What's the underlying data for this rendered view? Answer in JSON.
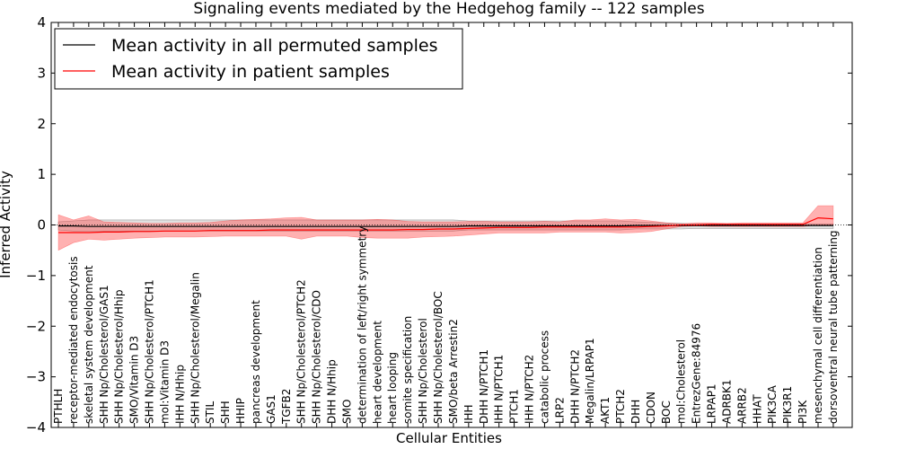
{
  "chart_data": {
    "type": "line",
    "title": "Signaling events mediated by the Hedgehog family -- 122 samples",
    "xlabel": "Cellular Entities",
    "ylabel": "Inferred Activity",
    "ylim": [
      -4,
      4
    ],
    "yticks": [
      -4,
      -3,
      -2,
      -1,
      0,
      1,
      2,
      3,
      4
    ],
    "ytick_labels": [
      "−4",
      "−3",
      "−2",
      "−1",
      "0",
      "1",
      "2",
      "3",
      "4"
    ],
    "legend_position": "top-left",
    "grid": false,
    "categories": [
      "PTHLH",
      "receptor-mediated endocytosis",
      "skeletal system development",
      "SHH Np/Cholesterol/GAS1",
      "SHH Np/Cholesterol/Hhip",
      "SMO/Vitamin D3",
      "SHH Np/Cholesterol/PTCH1",
      "mol:Vitamin D3",
      "IHH N/Hhip",
      "SHH Np/Cholesterol/Megalin",
      "STIL",
      "SHH",
      "HHIP",
      "pancreas development",
      "GAS1",
      "TGFB2",
      "SHH Np/Cholesterol/PTCH2",
      "SHH Np/Cholesterol/CDO",
      "DHH N/Hhip",
      "SMO",
      "determination of left/right symmetry",
      "heart development",
      "heart looping",
      "somite specification",
      "SHH Np/Cholesterol",
      "SHH Np/Cholesterol/BOC",
      "SMO/beta Arrestin2",
      "IHH",
      "DHH N/PTCH1",
      "IHH N/PTCH1",
      "PTCH1",
      "IHH N/PTCH2",
      "catabolic process",
      "LRP2",
      "DHH N/PTCH2",
      "Megalin/LRPAP1",
      "AKT1",
      "PTCH2",
      "DHH",
      "CDON",
      "BOC",
      "mol:Cholesterol",
      "EntrezGene:84976",
      "LRPAP1",
      "ADRBK1",
      "ARRB2",
      "HHAT",
      "PIK3CA",
      "PIK3R1",
      "PI3K",
      "mesenchymal cell differentiation",
      "dorsoventral neural tube patterning"
    ],
    "series": [
      {
        "name": "Mean activity in all permuted samples",
        "color": "#000000",
        "values": [
          -0.02,
          -0.02,
          -0.03,
          -0.03,
          -0.03,
          -0.03,
          -0.03,
          -0.03,
          -0.03,
          -0.03,
          -0.03,
          -0.03,
          -0.03,
          -0.03,
          -0.03,
          -0.03,
          -0.03,
          -0.03,
          -0.03,
          -0.03,
          -0.03,
          -0.03,
          -0.03,
          -0.03,
          -0.03,
          -0.03,
          -0.03,
          -0.02,
          -0.02,
          -0.02,
          -0.02,
          -0.02,
          -0.02,
          -0.02,
          -0.02,
          -0.02,
          -0.02,
          -0.02,
          -0.01,
          -0.01,
          -0.01,
          -0.01,
          -0.01,
          -0.01,
          -0.01,
          -0.01,
          -0.01,
          -0.01,
          -0.01,
          -0.01,
          -0.01,
          -0.01
        ],
        "band_low": [
          -0.1,
          -0.12,
          -0.12,
          -0.12,
          -0.12,
          -0.12,
          -0.12,
          -0.12,
          -0.12,
          -0.12,
          -0.12,
          -0.12,
          -0.12,
          -0.12,
          -0.12,
          -0.12,
          -0.12,
          -0.12,
          -0.12,
          -0.12,
          -0.12,
          -0.12,
          -0.12,
          -0.12,
          -0.12,
          -0.12,
          -0.12,
          -0.1,
          -0.1,
          -0.1,
          -0.1,
          -0.1,
          -0.1,
          -0.1,
          -0.1,
          -0.1,
          -0.1,
          -0.1,
          -0.08,
          -0.08,
          -0.08,
          -0.08,
          -0.07,
          -0.07,
          -0.07,
          -0.07,
          -0.07,
          -0.07,
          -0.07,
          -0.07,
          -0.07,
          -0.07
        ],
        "band_high": [
          0.06,
          0.08,
          0.1,
          0.1,
          0.1,
          0.1,
          0.1,
          0.1,
          0.1,
          0.1,
          0.1,
          0.1,
          0.1,
          0.1,
          0.1,
          0.1,
          0.1,
          0.1,
          0.1,
          0.1,
          0.1,
          0.1,
          0.1,
          0.1,
          0.1,
          0.1,
          0.1,
          0.08,
          0.08,
          0.08,
          0.08,
          0.08,
          0.08,
          0.08,
          0.08,
          0.08,
          0.08,
          0.08,
          0.06,
          0.05,
          0.04,
          0.03,
          0.02,
          0.02,
          0.02,
          0.02,
          0.02,
          0.02,
          0.02,
          0.02,
          0.02,
          0.02
        ]
      },
      {
        "name": "Mean activity in patient samples",
        "color": "#ff0000",
        "values": [
          -0.15,
          -0.15,
          -0.15,
          -0.14,
          -0.14,
          -0.13,
          -0.13,
          -0.12,
          -0.12,
          -0.12,
          -0.11,
          -0.11,
          -0.11,
          -0.11,
          -0.1,
          -0.1,
          -0.1,
          -0.1,
          -0.1,
          -0.1,
          -0.1,
          -0.1,
          -0.1,
          -0.09,
          -0.09,
          -0.08,
          -0.08,
          -0.07,
          -0.06,
          -0.05,
          -0.05,
          -0.05,
          -0.04,
          -0.04,
          -0.04,
          -0.04,
          -0.04,
          -0.04,
          -0.04,
          -0.03,
          -0.02,
          0.0,
          0.0,
          0.01,
          0.01,
          0.01,
          0.01,
          0.01,
          0.01,
          0.01,
          0.14,
          0.12
        ],
        "band_low": [
          -0.5,
          -0.35,
          -0.28,
          -0.3,
          -0.28,
          -0.26,
          -0.25,
          -0.24,
          -0.24,
          -0.24,
          -0.23,
          -0.22,
          -0.22,
          -0.22,
          -0.22,
          -0.22,
          -0.28,
          -0.22,
          -0.22,
          -0.22,
          -0.25,
          -0.26,
          -0.26,
          -0.26,
          -0.24,
          -0.23,
          -0.22,
          -0.2,
          -0.18,
          -0.16,
          -0.16,
          -0.16,
          -0.16,
          -0.14,
          -0.14,
          -0.14,
          -0.14,
          -0.16,
          -0.15,
          -0.13,
          -0.08,
          -0.03,
          -0.02,
          -0.03,
          -0.03,
          -0.03,
          -0.03,
          -0.03,
          -0.03,
          -0.03,
          0.0,
          0.0
        ],
        "band_high": [
          0.2,
          0.1,
          0.18,
          0.06,
          0.05,
          0.04,
          0.03,
          0.03,
          0.04,
          0.04,
          0.05,
          0.08,
          0.1,
          0.11,
          0.12,
          0.14,
          0.15,
          0.1,
          0.1,
          0.1,
          0.1,
          0.11,
          0.1,
          0.07,
          0.06,
          0.06,
          0.06,
          0.07,
          0.07,
          0.06,
          0.06,
          0.06,
          0.07,
          0.06,
          0.1,
          0.1,
          0.12,
          0.1,
          0.11,
          0.08,
          0.04,
          0.02,
          0.04,
          0.04,
          0.03,
          0.04,
          0.04,
          0.04,
          0.04,
          0.04,
          0.38,
          0.38
        ]
      }
    ]
  }
}
